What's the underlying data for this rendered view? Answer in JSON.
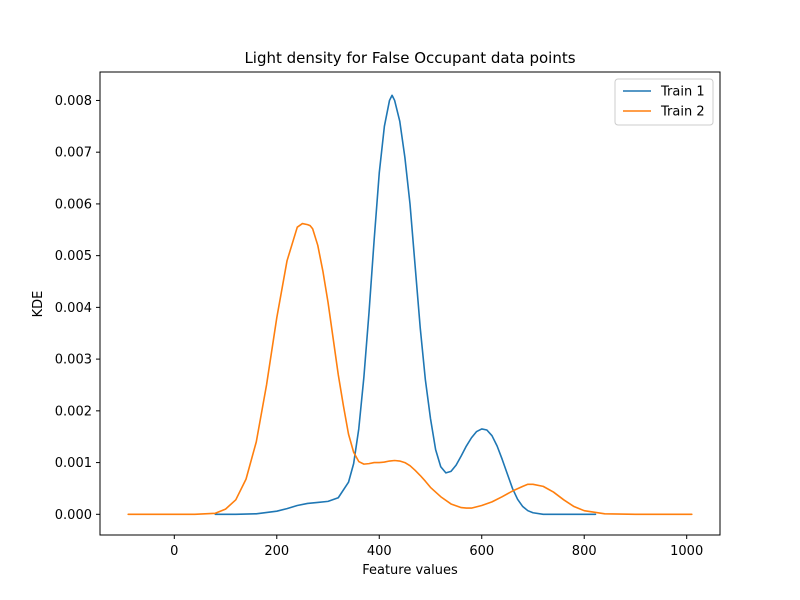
{
  "chart_data": {
    "type": "line",
    "title": "Light density for False Occupant data points",
    "xlabel": "Feature values",
    "ylabel": "KDE",
    "xlim": [
      -145,
      1065
    ],
    "ylim": [
      -0.0004,
      0.00855
    ],
    "xticks": [
      0,
      200,
      400,
      600,
      800,
      1000
    ],
    "yticks": [
      0.0,
      0.001,
      0.002,
      0.003,
      0.004,
      0.005,
      0.006,
      0.007,
      0.008
    ],
    "ytick_labels": [
      "0.000",
      "0.001",
      "0.002",
      "0.003",
      "0.004",
      "0.005",
      "0.006",
      "0.007",
      "0.008"
    ],
    "grid": false,
    "legend_position": "top-right",
    "series": [
      {
        "name": "Train 1",
        "color": "#1f77b4",
        "x": [
          80,
          120,
          160,
          200,
          220,
          240,
          260,
          280,
          300,
          320,
          340,
          350,
          360,
          370,
          380,
          390,
          400,
          410,
          420,
          425,
          430,
          440,
          450,
          460,
          470,
          480,
          490,
          500,
          510,
          520,
          530,
          540,
          550,
          560,
          570,
          580,
          590,
          600,
          610,
          620,
          630,
          640,
          650,
          660,
          670,
          680,
          690,
          700,
          720,
          740,
          760,
          780,
          800,
          822
        ],
        "y": [
          0.0,
          0.0,
          1e-05,
          6e-05,
          0.00011,
          0.00017,
          0.00021,
          0.00023,
          0.00025,
          0.00032,
          0.00062,
          0.00098,
          0.00165,
          0.00265,
          0.0039,
          0.0053,
          0.0066,
          0.0075,
          0.008,
          0.0081,
          0.008,
          0.0076,
          0.0069,
          0.006,
          0.0048,
          0.0036,
          0.0026,
          0.00185,
          0.00125,
          0.00092,
          0.0008,
          0.00083,
          0.00095,
          0.00113,
          0.00132,
          0.00148,
          0.0016,
          0.00165,
          0.00163,
          0.00152,
          0.00132,
          0.00106,
          0.00078,
          0.0005,
          0.00029,
          0.00015,
          7e-05,
          3e-05,
          0.0,
          0.0,
          0.0,
          0.0,
          0.0,
          0.0
        ]
      },
      {
        "name": "Train 2",
        "color": "#ff7f0e",
        "x": [
          -90,
          -40,
          0,
          40,
          80,
          100,
          120,
          140,
          160,
          180,
          200,
          220,
          240,
          250,
          260,
          265,
          270,
          280,
          290,
          300,
          310,
          320,
          330,
          340,
          350,
          360,
          370,
          380,
          390,
          400,
          410,
          420,
          430,
          440,
          450,
          460,
          470,
          480,
          490,
          500,
          520,
          540,
          560,
          570,
          580,
          600,
          620,
          640,
          660,
          680,
          690,
          700,
          720,
          740,
          760,
          780,
          800,
          840,
          900,
          960,
          1010
        ],
        "y": [
          0.0,
          0.0,
          0.0,
          0.0,
          2e-05,
          0.0001,
          0.00028,
          0.00068,
          0.0014,
          0.0025,
          0.0038,
          0.0049,
          0.00555,
          0.00562,
          0.0056,
          0.00558,
          0.00552,
          0.0052,
          0.0047,
          0.0041,
          0.0034,
          0.0027,
          0.0021,
          0.00155,
          0.0012,
          0.00102,
          0.00097,
          0.00098,
          0.001,
          0.001,
          0.00101,
          0.00103,
          0.00104,
          0.00103,
          0.001,
          0.00094,
          0.00085,
          0.00075,
          0.00064,
          0.00052,
          0.00034,
          0.0002,
          0.00013,
          0.00012,
          0.00012,
          0.00017,
          0.00024,
          0.00034,
          0.00045,
          0.00054,
          0.00058,
          0.00058,
          0.00054,
          0.00043,
          0.00028,
          0.00015,
          7e-05,
          1e-05,
          0.0,
          0.0,
          0.0
        ]
      }
    ]
  }
}
